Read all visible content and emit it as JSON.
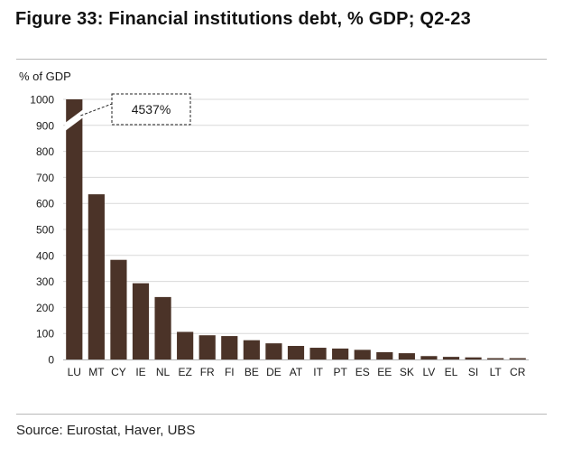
{
  "header": {
    "title": "Figure 33: Financial institutions debt, % GDP; Q2-23"
  },
  "footer": {
    "source": "Source: Eurostat, Haver, UBS"
  },
  "colors": {
    "bar": "#4b3328",
    "grid": "#d9d9d9",
    "axis": "#b3b3b3"
  },
  "chart_data": {
    "type": "bar",
    "title": "Figure 33: Financial institutions debt, % GDP; Q2-23",
    "ylabel": "% of GDP",
    "xlabel": "",
    "ylim": [
      0,
      1000
    ],
    "yticks": [
      0,
      100,
      200,
      300,
      400,
      500,
      600,
      700,
      800,
      900,
      1000
    ],
    "grid": true,
    "axis_break": "LU bar truncated at 1000",
    "categories": [
      "LU",
      "MT",
      "CY",
      "IE",
      "NL",
      "EZ",
      "FR",
      "FI",
      "BE",
      "DE",
      "AT",
      "IT",
      "PT",
      "ES",
      "EE",
      "SK",
      "LV",
      "EL",
      "SI",
      "LT",
      "CR"
    ],
    "values": [
      4537,
      635,
      383,
      293,
      240,
      106,
      93,
      90,
      74,
      62,
      52,
      45,
      42,
      37,
      28,
      24,
      13,
      10,
      8,
      5,
      5
    ],
    "annotation": "4537%"
  }
}
